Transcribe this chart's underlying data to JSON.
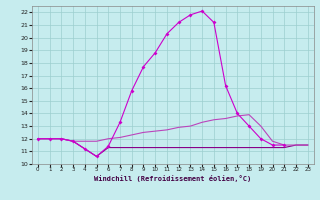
{
  "xlabel": "Windchill (Refroidissement éolien,°C)",
  "xlim": [
    -0.5,
    23.5
  ],
  "ylim": [
    10,
    22.5
  ],
  "yticks": [
    10,
    11,
    12,
    13,
    14,
    15,
    16,
    17,
    18,
    19,
    20,
    21,
    22
  ],
  "xticks": [
    0,
    1,
    2,
    3,
    4,
    5,
    6,
    7,
    8,
    9,
    10,
    11,
    12,
    13,
    14,
    15,
    16,
    17,
    18,
    19,
    20,
    21,
    22,
    23
  ],
  "bg_color": "#c6ecee",
  "grid_color": "#9dcfcf",
  "line_color1": "#cc00cc",
  "line_color2": "#880088",
  "line_color3": "#bb44bb",
  "series1_x": [
    0,
    1,
    2,
    3,
    4,
    5,
    6,
    7,
    8,
    9,
    10,
    11,
    12,
    13,
    14,
    15,
    16,
    17,
    18,
    19,
    20,
    21
  ],
  "series1_y": [
    12.0,
    12.0,
    12.0,
    11.8,
    11.2,
    10.6,
    11.4,
    13.3,
    15.8,
    17.7,
    18.8,
    20.3,
    21.2,
    21.8,
    22.1,
    21.2,
    16.2,
    14.0,
    13.0,
    12.0,
    11.5,
    11.5
  ],
  "series2_x": [
    0,
    1,
    2,
    3,
    4,
    5,
    6,
    7,
    8,
    9,
    10,
    11,
    12,
    13,
    14,
    15,
    16,
    17,
    18,
    19,
    20,
    21,
    22,
    23
  ],
  "series2_y": [
    12.0,
    12.0,
    12.0,
    11.8,
    11.2,
    10.6,
    11.3,
    11.3,
    11.3,
    11.3,
    11.3,
    11.3,
    11.3,
    11.3,
    11.3,
    11.3,
    11.3,
    11.3,
    11.3,
    11.3,
    11.3,
    11.3,
    11.5,
    11.5
  ],
  "series3_x": [
    0,
    1,
    2,
    3,
    4,
    5,
    6,
    7,
    8,
    9,
    10,
    11,
    12,
    13,
    14,
    15,
    16,
    17,
    18,
    19,
    20,
    21,
    22,
    23
  ],
  "series3_y": [
    12.0,
    12.0,
    12.0,
    11.8,
    11.8,
    11.8,
    12.0,
    12.1,
    12.3,
    12.5,
    12.6,
    12.7,
    12.9,
    13.0,
    13.3,
    13.5,
    13.6,
    13.8,
    13.9,
    13.0,
    11.8,
    11.5,
    11.5,
    11.5
  ]
}
